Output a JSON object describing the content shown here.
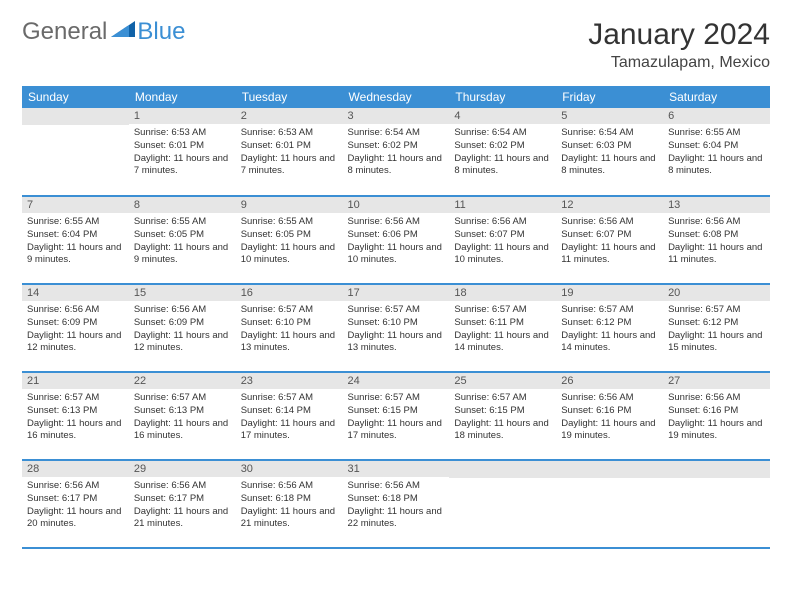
{
  "brand": {
    "part1": "General",
    "part2": "Blue"
  },
  "title": "January 2024",
  "location": "Tamazulapam, Mexico",
  "day_headers": [
    "Sunday",
    "Monday",
    "Tuesday",
    "Wednesday",
    "Thursday",
    "Friday",
    "Saturday"
  ],
  "colors": {
    "accent": "#3b8fd4",
    "daynum_bg": "#e6e6e6",
    "text": "#333",
    "logo_gray": "#6a6a6a"
  },
  "fonts": {
    "title_size": 30,
    "location_size": 16,
    "header_size": 12,
    "daynum_size": 11,
    "body_size": 9.5
  },
  "weeks": [
    [
      {
        "n": "",
        "sunrise": "",
        "sunset": "",
        "daylight": ""
      },
      {
        "n": "1",
        "sunrise": "Sunrise: 6:53 AM",
        "sunset": "Sunset: 6:01 PM",
        "daylight": "Daylight: 11 hours and 7 minutes."
      },
      {
        "n": "2",
        "sunrise": "Sunrise: 6:53 AM",
        "sunset": "Sunset: 6:01 PM",
        "daylight": "Daylight: 11 hours and 7 minutes."
      },
      {
        "n": "3",
        "sunrise": "Sunrise: 6:54 AM",
        "sunset": "Sunset: 6:02 PM",
        "daylight": "Daylight: 11 hours and 8 minutes."
      },
      {
        "n": "4",
        "sunrise": "Sunrise: 6:54 AM",
        "sunset": "Sunset: 6:02 PM",
        "daylight": "Daylight: 11 hours and 8 minutes."
      },
      {
        "n": "5",
        "sunrise": "Sunrise: 6:54 AM",
        "sunset": "Sunset: 6:03 PM",
        "daylight": "Daylight: 11 hours and 8 minutes."
      },
      {
        "n": "6",
        "sunrise": "Sunrise: 6:55 AM",
        "sunset": "Sunset: 6:04 PM",
        "daylight": "Daylight: 11 hours and 8 minutes."
      }
    ],
    [
      {
        "n": "7",
        "sunrise": "Sunrise: 6:55 AM",
        "sunset": "Sunset: 6:04 PM",
        "daylight": "Daylight: 11 hours and 9 minutes."
      },
      {
        "n": "8",
        "sunrise": "Sunrise: 6:55 AM",
        "sunset": "Sunset: 6:05 PM",
        "daylight": "Daylight: 11 hours and 9 minutes."
      },
      {
        "n": "9",
        "sunrise": "Sunrise: 6:55 AM",
        "sunset": "Sunset: 6:05 PM",
        "daylight": "Daylight: 11 hours and 10 minutes."
      },
      {
        "n": "10",
        "sunrise": "Sunrise: 6:56 AM",
        "sunset": "Sunset: 6:06 PM",
        "daylight": "Daylight: 11 hours and 10 minutes."
      },
      {
        "n": "11",
        "sunrise": "Sunrise: 6:56 AM",
        "sunset": "Sunset: 6:07 PM",
        "daylight": "Daylight: 11 hours and 10 minutes."
      },
      {
        "n": "12",
        "sunrise": "Sunrise: 6:56 AM",
        "sunset": "Sunset: 6:07 PM",
        "daylight": "Daylight: 11 hours and 11 minutes."
      },
      {
        "n": "13",
        "sunrise": "Sunrise: 6:56 AM",
        "sunset": "Sunset: 6:08 PM",
        "daylight": "Daylight: 11 hours and 11 minutes."
      }
    ],
    [
      {
        "n": "14",
        "sunrise": "Sunrise: 6:56 AM",
        "sunset": "Sunset: 6:09 PM",
        "daylight": "Daylight: 11 hours and 12 minutes."
      },
      {
        "n": "15",
        "sunrise": "Sunrise: 6:56 AM",
        "sunset": "Sunset: 6:09 PM",
        "daylight": "Daylight: 11 hours and 12 minutes."
      },
      {
        "n": "16",
        "sunrise": "Sunrise: 6:57 AM",
        "sunset": "Sunset: 6:10 PM",
        "daylight": "Daylight: 11 hours and 13 minutes."
      },
      {
        "n": "17",
        "sunrise": "Sunrise: 6:57 AM",
        "sunset": "Sunset: 6:10 PM",
        "daylight": "Daylight: 11 hours and 13 minutes."
      },
      {
        "n": "18",
        "sunrise": "Sunrise: 6:57 AM",
        "sunset": "Sunset: 6:11 PM",
        "daylight": "Daylight: 11 hours and 14 minutes."
      },
      {
        "n": "19",
        "sunrise": "Sunrise: 6:57 AM",
        "sunset": "Sunset: 6:12 PM",
        "daylight": "Daylight: 11 hours and 14 minutes."
      },
      {
        "n": "20",
        "sunrise": "Sunrise: 6:57 AM",
        "sunset": "Sunset: 6:12 PM",
        "daylight": "Daylight: 11 hours and 15 minutes."
      }
    ],
    [
      {
        "n": "21",
        "sunrise": "Sunrise: 6:57 AM",
        "sunset": "Sunset: 6:13 PM",
        "daylight": "Daylight: 11 hours and 16 minutes."
      },
      {
        "n": "22",
        "sunrise": "Sunrise: 6:57 AM",
        "sunset": "Sunset: 6:13 PM",
        "daylight": "Daylight: 11 hours and 16 minutes."
      },
      {
        "n": "23",
        "sunrise": "Sunrise: 6:57 AM",
        "sunset": "Sunset: 6:14 PM",
        "daylight": "Daylight: 11 hours and 17 minutes."
      },
      {
        "n": "24",
        "sunrise": "Sunrise: 6:57 AM",
        "sunset": "Sunset: 6:15 PM",
        "daylight": "Daylight: 11 hours and 17 minutes."
      },
      {
        "n": "25",
        "sunrise": "Sunrise: 6:57 AM",
        "sunset": "Sunset: 6:15 PM",
        "daylight": "Daylight: 11 hours and 18 minutes."
      },
      {
        "n": "26",
        "sunrise": "Sunrise: 6:56 AM",
        "sunset": "Sunset: 6:16 PM",
        "daylight": "Daylight: 11 hours and 19 minutes."
      },
      {
        "n": "27",
        "sunrise": "Sunrise: 6:56 AM",
        "sunset": "Sunset: 6:16 PM",
        "daylight": "Daylight: 11 hours and 19 minutes."
      }
    ],
    [
      {
        "n": "28",
        "sunrise": "Sunrise: 6:56 AM",
        "sunset": "Sunset: 6:17 PM",
        "daylight": "Daylight: 11 hours and 20 minutes."
      },
      {
        "n": "29",
        "sunrise": "Sunrise: 6:56 AM",
        "sunset": "Sunset: 6:17 PM",
        "daylight": "Daylight: 11 hours and 21 minutes."
      },
      {
        "n": "30",
        "sunrise": "Sunrise: 6:56 AM",
        "sunset": "Sunset: 6:18 PM",
        "daylight": "Daylight: 11 hours and 21 minutes."
      },
      {
        "n": "31",
        "sunrise": "Sunrise: 6:56 AM",
        "sunset": "Sunset: 6:18 PM",
        "daylight": "Daylight: 11 hours and 22 minutes."
      },
      {
        "n": "",
        "sunrise": "",
        "sunset": "",
        "daylight": ""
      },
      {
        "n": "",
        "sunrise": "",
        "sunset": "",
        "daylight": ""
      },
      {
        "n": "",
        "sunrise": "",
        "sunset": "",
        "daylight": ""
      }
    ]
  ]
}
